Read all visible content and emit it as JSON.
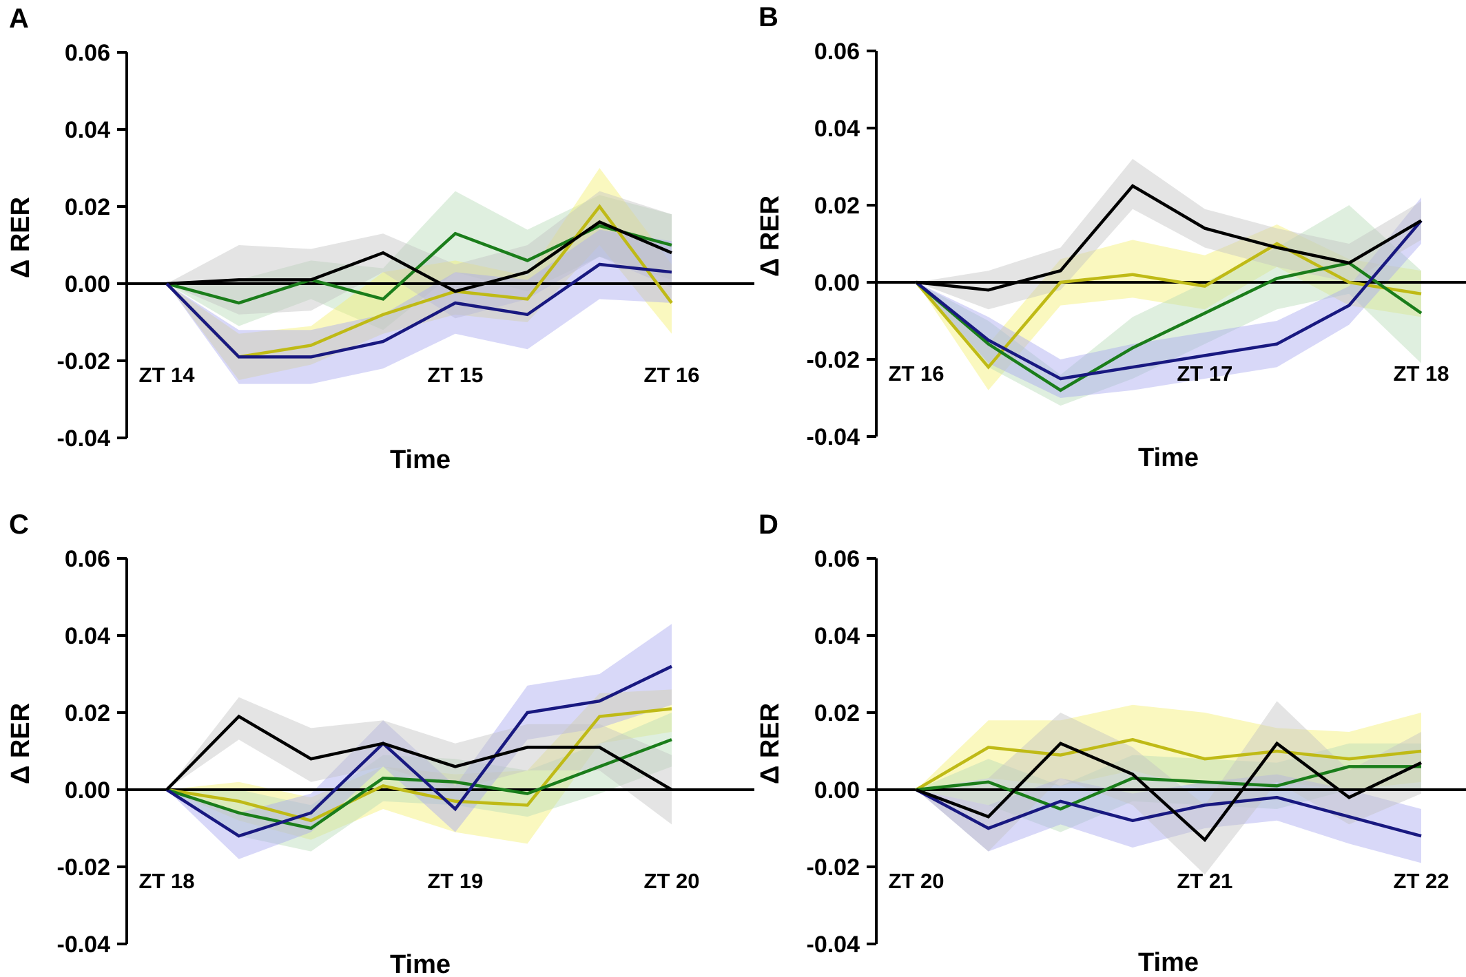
{
  "style": {
    "series_colors": {
      "black": "#000000",
      "green": "#1a7d1a",
      "olive": "#bfba16",
      "navy": "#181880"
    },
    "band_colors": {
      "black": "#c4c4c4",
      "green": "#b8dcb8",
      "olive": "#f4f070",
      "navy": "#a8a8f0"
    },
    "zero_line": "#000000"
  },
  "chart_data": [
    {
      "type": "line",
      "panel": "A",
      "xlabel": "Time",
      "ylabel": "Δ RER",
      "ylim": [
        -0.04,
        0.06
      ],
      "yticks": [
        "0.06",
        "0.04",
        "0.02",
        "0.00",
        "-0.02",
        "-0.04"
      ],
      "x_tick_labels": [
        {
          "label": "ZT 14",
          "x": 0
        },
        {
          "label": "ZT 15",
          "x": 4
        },
        {
          "label": "ZT 16",
          "x": 7
        }
      ],
      "x": [
        0,
        1,
        2,
        3,
        4,
        5,
        6,
        7
      ],
      "series": [
        {
          "color_key": "green",
          "values": [
            0,
            -0.005,
            0.001,
            -0.004,
            0.013,
            0.006,
            0.015,
            0.01
          ],
          "lower": [
            0,
            -0.011,
            -0.004,
            -0.012,
            0.003,
            -0.002,
            0.007,
            0.001
          ],
          "upper": [
            0,
            0.001,
            0.006,
            0.004,
            0.024,
            0.014,
            0.023,
            0.018
          ]
        },
        {
          "color_key": "olive",
          "values": [
            0,
            -0.019,
            -0.016,
            -0.008,
            -0.002,
            -0.004,
            0.02,
            -0.005
          ],
          "lower": [
            0,
            -0.025,
            -0.021,
            -0.013,
            -0.008,
            -0.01,
            0.01,
            -0.013
          ],
          "upper": [
            0,
            -0.013,
            -0.011,
            0.003,
            0.006,
            0.002,
            0.03,
            0.005
          ]
        },
        {
          "color_key": "black",
          "values": [
            0,
            0.001,
            0.001,
            0.008,
            -0.002,
            0.003,
            0.016,
            0.008
          ],
          "lower": [
            0,
            -0.008,
            -0.007,
            0.003,
            -0.009,
            -0.004,
            0.007,
            -0.001
          ],
          "upper": [
            0,
            0.01,
            0.009,
            0.013,
            0.005,
            0.01,
            0.024,
            0.018
          ]
        },
        {
          "color_key": "navy",
          "values": [
            0,
            -0.019,
            -0.019,
            -0.015,
            -0.005,
            -0.008,
            0.005,
            0.003
          ],
          "lower": [
            0,
            -0.026,
            -0.026,
            -0.022,
            -0.013,
            -0.017,
            -0.004,
            -0.005
          ],
          "upper": [
            0,
            -0.012,
            -0.012,
            -0.008,
            0.003,
            0.001,
            0.014,
            0.011
          ]
        }
      ]
    },
    {
      "type": "line",
      "panel": "B",
      "xlabel": "Time",
      "ylabel": "Δ RER",
      "ylim": [
        -0.04,
        0.06
      ],
      "yticks": [
        "0.06",
        "0.04",
        "0.02",
        "0.00",
        "-0.02",
        "-0.04"
      ],
      "x_tick_labels": [
        {
          "label": "ZT 16",
          "x": 0
        },
        {
          "label": "ZT 17",
          "x": 4
        },
        {
          "label": "ZT 18",
          "x": 7
        }
      ],
      "x": [
        0,
        1,
        2,
        3,
        4,
        5,
        6,
        7
      ],
      "series": [
        {
          "color_key": "olive",
          "values": [
            0,
            -0.022,
            0.0,
            0.002,
            -0.001,
            0.01,
            0.0,
            -0.003
          ],
          "lower": [
            0,
            -0.028,
            -0.006,
            -0.004,
            -0.007,
            0.004,
            -0.006,
            -0.009
          ],
          "upper": [
            0,
            -0.016,
            0.006,
            0.011,
            0.007,
            0.015,
            0.006,
            0.003
          ]
        },
        {
          "color_key": "green",
          "values": [
            0,
            -0.016,
            -0.028,
            -0.017,
            -0.008,
            0.001,
            0.005,
            -0.008
          ],
          "lower": [
            0,
            -0.022,
            -0.032,
            -0.025,
            -0.016,
            -0.007,
            -0.003,
            -0.021
          ],
          "upper": [
            0,
            -0.01,
            -0.024,
            -0.009,
            0.0,
            0.009,
            0.02,
            0.003
          ]
        },
        {
          "color_key": "navy",
          "values": [
            0,
            -0.015,
            -0.025,
            -0.022,
            -0.019,
            -0.016,
            -0.006,
            0.016
          ],
          "lower": [
            0,
            -0.021,
            -0.03,
            -0.028,
            -0.025,
            -0.022,
            -0.011,
            0.01
          ],
          "upper": [
            0,
            -0.009,
            -0.02,
            -0.016,
            -0.013,
            -0.01,
            -0.001,
            0.022
          ]
        },
        {
          "color_key": "black",
          "values": [
            0,
            -0.002,
            0.003,
            0.025,
            0.014,
            0.009,
            0.005,
            0.016
          ],
          "lower": [
            0,
            -0.007,
            -0.002,
            0.019,
            0.009,
            0.004,
            0.0,
            0.011
          ],
          "upper": [
            0,
            0.003,
            0.009,
            0.032,
            0.019,
            0.014,
            0.01,
            0.021
          ]
        }
      ]
    },
    {
      "type": "line",
      "panel": "C",
      "xlabel": "Time",
      "ylabel": "Δ RER",
      "ylim": [
        -0.04,
        0.06
      ],
      "yticks": [
        "0.06",
        "0.04",
        "0.02",
        "0.00",
        "-0.02",
        "-0.04"
      ],
      "x_tick_labels": [
        {
          "label": "ZT 18",
          "x": 0
        },
        {
          "label": "ZT 19",
          "x": 4
        },
        {
          "label": "ZT 20",
          "x": 7
        }
      ],
      "x": [
        0,
        1,
        2,
        3,
        4,
        5,
        6,
        7
      ],
      "series": [
        {
          "color_key": "olive",
          "values": [
            0,
            -0.003,
            -0.008,
            0.001,
            -0.003,
            -0.004,
            0.019,
            0.021
          ],
          "lower": [
            0,
            -0.008,
            -0.013,
            -0.005,
            -0.011,
            -0.014,
            0.012,
            0.015
          ],
          "upper": [
            0,
            0.002,
            -0.002,
            0.006,
            0.004,
            0.005,
            0.025,
            0.026
          ]
        },
        {
          "color_key": "green",
          "values": [
            0,
            -0.006,
            -0.01,
            0.003,
            0.002,
            -0.001,
            0.006,
            0.013
          ],
          "lower": [
            0,
            -0.012,
            -0.016,
            -0.003,
            -0.004,
            -0.007,
            -0.001,
            0.006
          ],
          "upper": [
            0,
            0.0,
            -0.004,
            0.009,
            0.008,
            0.005,
            0.012,
            0.02
          ]
        },
        {
          "color_key": "navy",
          "values": [
            0,
            -0.012,
            -0.006,
            0.012,
            -0.005,
            0.02,
            0.023,
            0.032
          ],
          "lower": [
            0,
            -0.018,
            -0.011,
            0.006,
            -0.011,
            0.013,
            0.016,
            0.022
          ],
          "upper": [
            0,
            -0.006,
            -0.001,
            0.018,
            0.001,
            0.027,
            0.03,
            0.043
          ]
        },
        {
          "color_key": "black",
          "values": [
            0,
            0.019,
            0.008,
            0.012,
            0.006,
            0.011,
            0.011,
            0.0
          ],
          "lower": [
            0,
            0.013,
            0.002,
            0.006,
            0.0,
            0.005,
            0.005,
            -0.009
          ],
          "upper": [
            0,
            0.024,
            0.016,
            0.018,
            0.012,
            0.017,
            0.017,
            0.009
          ]
        }
      ]
    },
    {
      "type": "line",
      "panel": "D",
      "xlabel": "Time",
      "ylabel": "Δ RER",
      "ylim": [
        -0.04,
        0.06
      ],
      "yticks": [
        "0.06",
        "0.04",
        "0.02",
        "0.00",
        "-0.02",
        "-0.04"
      ],
      "x_tick_labels": [
        {
          "label": "ZT 20",
          "x": 0
        },
        {
          "label": "ZT 21",
          "x": 4
        },
        {
          "label": "ZT 22",
          "x": 7
        }
      ],
      "x": [
        0,
        1,
        2,
        3,
        4,
        5,
        6,
        7
      ],
      "series": [
        {
          "color_key": "olive",
          "values": [
            0,
            0.011,
            0.009,
            0.013,
            0.008,
            0.01,
            0.008,
            0.01
          ],
          "lower": [
            0,
            0.003,
            0.001,
            0.005,
            0.0,
            0.002,
            0.0,
            0.002
          ],
          "upper": [
            0,
            0.018,
            0.018,
            0.022,
            0.02,
            0.016,
            0.015,
            0.02
          ]
        },
        {
          "color_key": "green",
          "values": [
            0,
            0.002,
            -0.005,
            0.003,
            0.002,
            0.001,
            0.006,
            0.006
          ],
          "lower": [
            0,
            -0.004,
            -0.011,
            -0.003,
            -0.004,
            -0.005,
            0.0,
            0.0
          ],
          "upper": [
            0,
            0.008,
            0.001,
            0.009,
            0.008,
            0.007,
            0.012,
            0.012
          ]
        },
        {
          "color_key": "navy",
          "values": [
            0,
            -0.01,
            -0.003,
            -0.008,
            -0.004,
            -0.002,
            -0.007,
            -0.012
          ],
          "lower": [
            0,
            -0.016,
            -0.009,
            -0.015,
            -0.01,
            -0.008,
            -0.014,
            -0.019
          ],
          "upper": [
            0,
            -0.004,
            0.003,
            -0.001,
            0.002,
            0.004,
            0.0,
            -0.005
          ]
        },
        {
          "color_key": "black",
          "values": [
            0,
            -0.007,
            0.012,
            0.004,
            -0.013,
            0.012,
            -0.002,
            0.007
          ],
          "lower": [
            0,
            -0.016,
            0.003,
            -0.004,
            -0.022,
            0.002,
            -0.009,
            -0.001
          ],
          "upper": [
            0,
            0.003,
            0.02,
            0.011,
            -0.004,
            0.023,
            0.005,
            0.015
          ]
        }
      ]
    }
  ]
}
